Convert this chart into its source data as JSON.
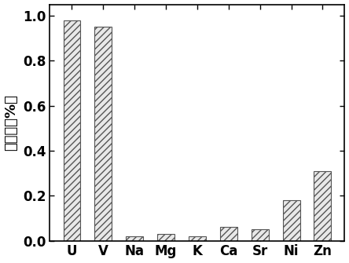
{
  "categories": [
    "U",
    "V",
    "Na",
    "Mg",
    "K",
    "Ca",
    "Sr",
    "Ni",
    "Zn"
  ],
  "values": [
    0.98,
    0.95,
    0.02,
    0.03,
    0.02,
    0.06,
    0.05,
    0.18,
    0.31
  ],
  "bar_facecolor": "#e8e8e8",
  "bar_edgecolor": "#555555",
  "hatch": "////",
  "ylim": [
    0,
    1.05
  ],
  "yticks": [
    0.0,
    0.2,
    0.4,
    0.6,
    0.8,
    1.0
  ],
  "ylabel": "吸收率（%）",
  "ylabel_fontsize": 13,
  "tick_fontsize": 12,
  "bar_width": 0.55,
  "figure_width": 4.44,
  "figure_height": 3.35,
  "dpi": 100,
  "background_color": "#ffffff",
  "spine_color": "#000000"
}
